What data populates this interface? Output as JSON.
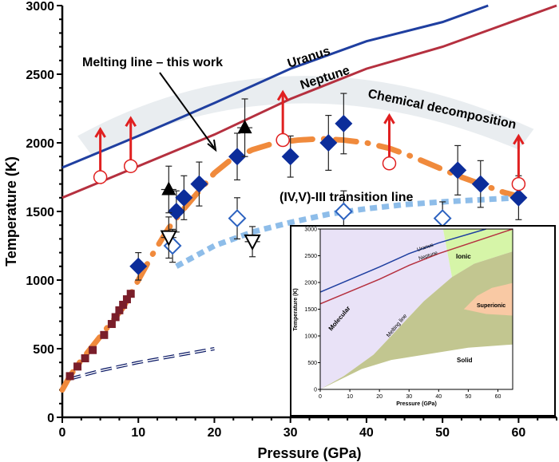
{
  "chart_data": {
    "type": "scatter",
    "xlabel": "Pressure (GPa)",
    "ylabel": "Temperature (K)",
    "xlim": [
      0,
      65
    ],
    "ylim": [
      0,
      3000
    ],
    "xticks": [
      0,
      10,
      20,
      30,
      40,
      50,
      60
    ],
    "yticks": [
      0,
      500,
      1000,
      1500,
      2000,
      2500,
      3000
    ],
    "grid": false,
    "colors": {
      "uranus": "#1f3fa0",
      "neptune": "#b5303f",
      "melting": "#f08a3c",
      "diamond": "#0c2d9a",
      "open_diamond": "#2c62c0",
      "transition": "#8ebde9",
      "squares": "#7a1e2a",
      "circles": "#e02020",
      "band": "#e3e8ec",
      "lowline": "#0c1a66"
    },
    "annotations": {
      "melting": "Melting line – this work",
      "uranus": "Uranus",
      "neptune": "Neptune",
      "decomp": "Chemical decomposition",
      "transition": "(IV,V)-III transition line"
    },
    "series": [
      {
        "kind": "uranus_isentrope",
        "x": [
          0,
          10,
          20,
          30,
          40,
          50,
          56
        ],
        "y": [
          1820,
          2050,
          2290,
          2540,
          2740,
          2880,
          3000
        ]
      },
      {
        "kind": "neptune_isentrope",
        "x": [
          0,
          10,
          20,
          30,
          40,
          50,
          65
        ],
        "y": [
          1600,
          1830,
          2060,
          2320,
          2540,
          2700,
          3000
        ]
      },
      {
        "kind": "melting_line",
        "x": [
          0,
          1,
          2,
          4,
          6,
          8,
          10,
          12,
          14,
          16,
          18,
          20,
          22,
          25,
          28,
          31,
          34,
          37,
          40,
          43,
          46,
          49,
          52,
          55,
          58,
          60
        ],
        "y": [
          200,
          300,
          380,
          520,
          660,
          800,
          1000,
          1200,
          1380,
          1520,
          1650,
          1780,
          1870,
          1950,
          2000,
          2020,
          2030,
          2020,
          2000,
          1960,
          1900,
          1830,
          1760,
          1700,
          1640,
          1610
        ]
      },
      {
        "kind": "filled_diamonds",
        "x": [
          10,
          15,
          16,
          18,
          23,
          30,
          35,
          37,
          52,
          55,
          60
        ],
        "y": [
          1100,
          1500,
          1600,
          1700,
          1900,
          1900,
          2000,
          2140,
          1800,
          1700,
          1600
        ],
        "err": [
          100,
          150,
          160,
          160,
          170,
          150,
          200,
          220,
          180,
          170,
          160
        ]
      },
      {
        "kind": "open_diamonds",
        "x": [
          14.5,
          23,
          37,
          50
        ],
        "y": [
          1250,
          1450,
          1500,
          1450
        ],
        "err": [
          120,
          150,
          150,
          120
        ]
      },
      {
        "kind": "filled_triangles",
        "x": [
          14,
          24
        ],
        "y": [
          1660,
          2110
        ],
        "err": [
          170,
          210
        ]
      },
      {
        "kind": "open_down_triangles",
        "x": [
          14,
          25
        ],
        "y": [
          1310,
          1280
        ],
        "err": [
          150,
          110
        ]
      },
      {
        "kind": "open_circles_lower_bound",
        "x": [
          5,
          9,
          29,
          43,
          60
        ],
        "y": [
          1750,
          1830,
          2020,
          1850,
          1700
        ]
      },
      {
        "kind": "squares",
        "x": [
          1,
          2,
          3,
          4,
          5.5,
          6.5,
          7,
          7.5,
          8,
          8.5,
          9
        ],
        "y": [
          300,
          370,
          430,
          490,
          600,
          680,
          730,
          780,
          820,
          860,
          900
        ]
      },
      {
        "kind": "low_dashed_line",
        "x": [
          1,
          5,
          10,
          15,
          20
        ],
        "y": [
          280,
          340,
          400,
          450,
          500
        ]
      },
      {
        "kind": "transition_line",
        "x": [
          15,
          20,
          25,
          30,
          35,
          40,
          45,
          50,
          55,
          60
        ],
        "y": [
          1100,
          1250,
          1350,
          1420,
          1480,
          1520,
          1550,
          1570,
          1585,
          1600
        ]
      }
    ],
    "inset": {
      "xlabel": "Pressure (GPa)",
      "ylabel": "Temperature (K)",
      "xticks": [
        0,
        10,
        20,
        30,
        40,
        50,
        60
      ],
      "yticks": [
        0,
        500,
        1000,
        1500,
        2000,
        2500,
        3000
      ],
      "regions": {
        "molecular": "Molecular",
        "ionic": "Ionic",
        "superionic": "Superionic",
        "solid": "Solid",
        "melting": "Melting line",
        "uranus": "Uranus",
        "neptune": "Neptune"
      },
      "colors": {
        "molecular": "#e9e2f7",
        "ionic": "#d6f5a8",
        "solid_phase": "#c2c690",
        "superionic": "#f9c9a4"
      }
    }
  }
}
